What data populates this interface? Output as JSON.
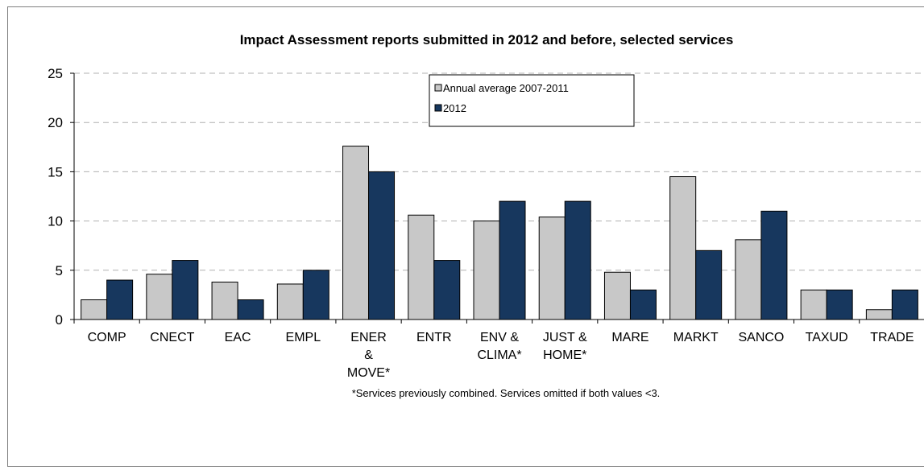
{
  "chart_data": {
    "type": "bar",
    "title": "Impact Assessment  reports  submitted  in 2012 and before, selected services",
    "categories": [
      [
        "COMP"
      ],
      [
        "CNECT"
      ],
      [
        "EAC"
      ],
      [
        "EMPL"
      ],
      [
        "ENER",
        "&",
        "MOVE*"
      ],
      [
        "ENTR"
      ],
      [
        "ENV &",
        "CLIMA*"
      ],
      [
        "JUST &",
        "HOME*"
      ],
      [
        "MARE"
      ],
      [
        "MARKT"
      ],
      [
        "SANCO"
      ],
      [
        "TAXUD"
      ],
      [
        "TRADE"
      ]
    ],
    "series": [
      {
        "name": "Annual average  2007-2011",
        "color": "#c8c8c8",
        "values": [
          2,
          4.6,
          3.8,
          3.6,
          17.6,
          10.6,
          10,
          10.4,
          4.8,
          14.5,
          8.1,
          3,
          1
        ]
      },
      {
        "name": "2012",
        "color": "#17375e",
        "values": [
          4,
          6,
          2,
          5,
          15,
          6,
          12,
          12,
          3,
          7,
          11,
          3,
          3
        ]
      }
    ],
    "ylim": [
      0,
      25
    ],
    "yticks": [
      0,
      5,
      10,
      15,
      20,
      25
    ],
    "grid": true,
    "legend_position": "top-center",
    "xlabel": "",
    "ylabel": ""
  },
  "footnote": "*Services previously  combined. Services omitted  if both values  <3."
}
